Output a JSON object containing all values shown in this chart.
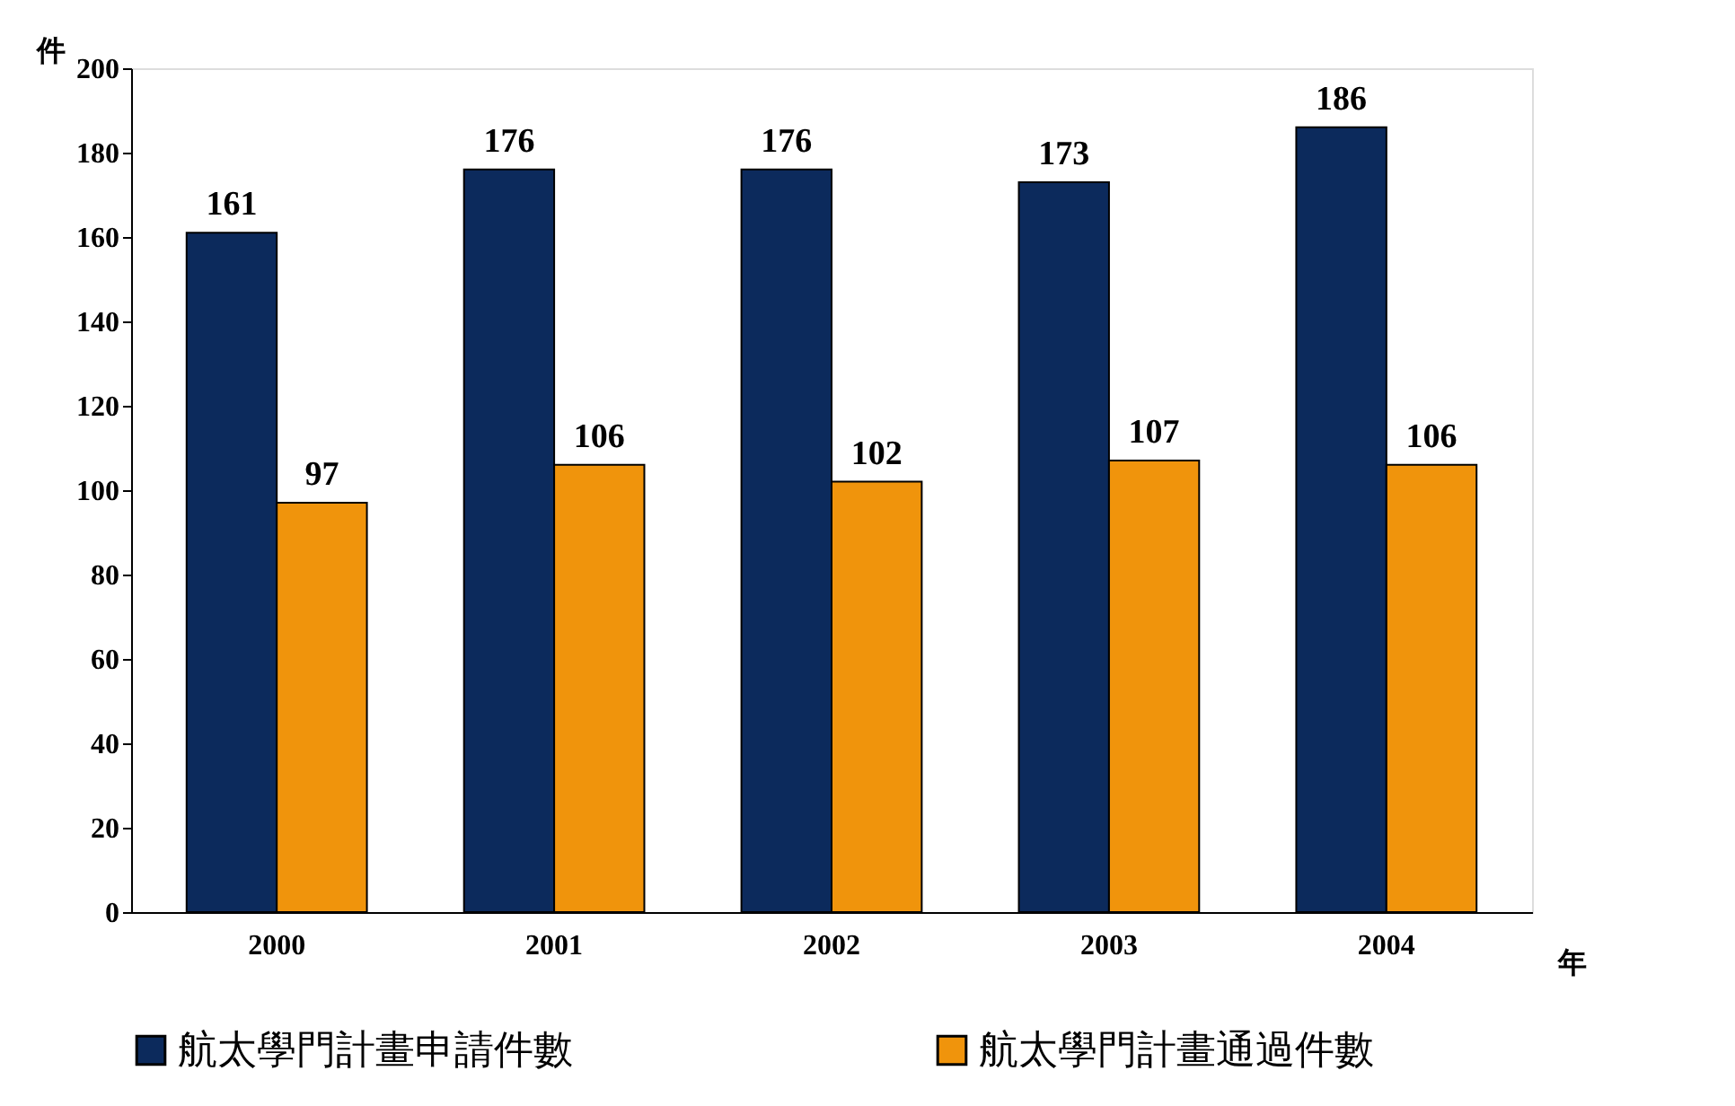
{
  "chart_data": {
    "type": "bar",
    "categories": [
      "2000",
      "2001",
      "2002",
      "2003",
      "2004"
    ],
    "series": [
      {
        "name": "航太學門計畫申請件數",
        "color": "#0c2a5c",
        "values": [
          161,
          176,
          176,
          173,
          186
        ]
      },
      {
        "name": "航太學門計畫通過件數",
        "color": "#f0940c",
        "values": [
          97,
          106,
          102,
          107,
          106
        ]
      }
    ],
    "ylabel": "件",
    "xlabel": "年",
    "ylim": [
      0,
      200
    ],
    "yticks": [
      0,
      20,
      40,
      60,
      80,
      100,
      120,
      140,
      160,
      180,
      200
    ],
    "grid": false,
    "legend": "bottom",
    "data_labels": true
  }
}
